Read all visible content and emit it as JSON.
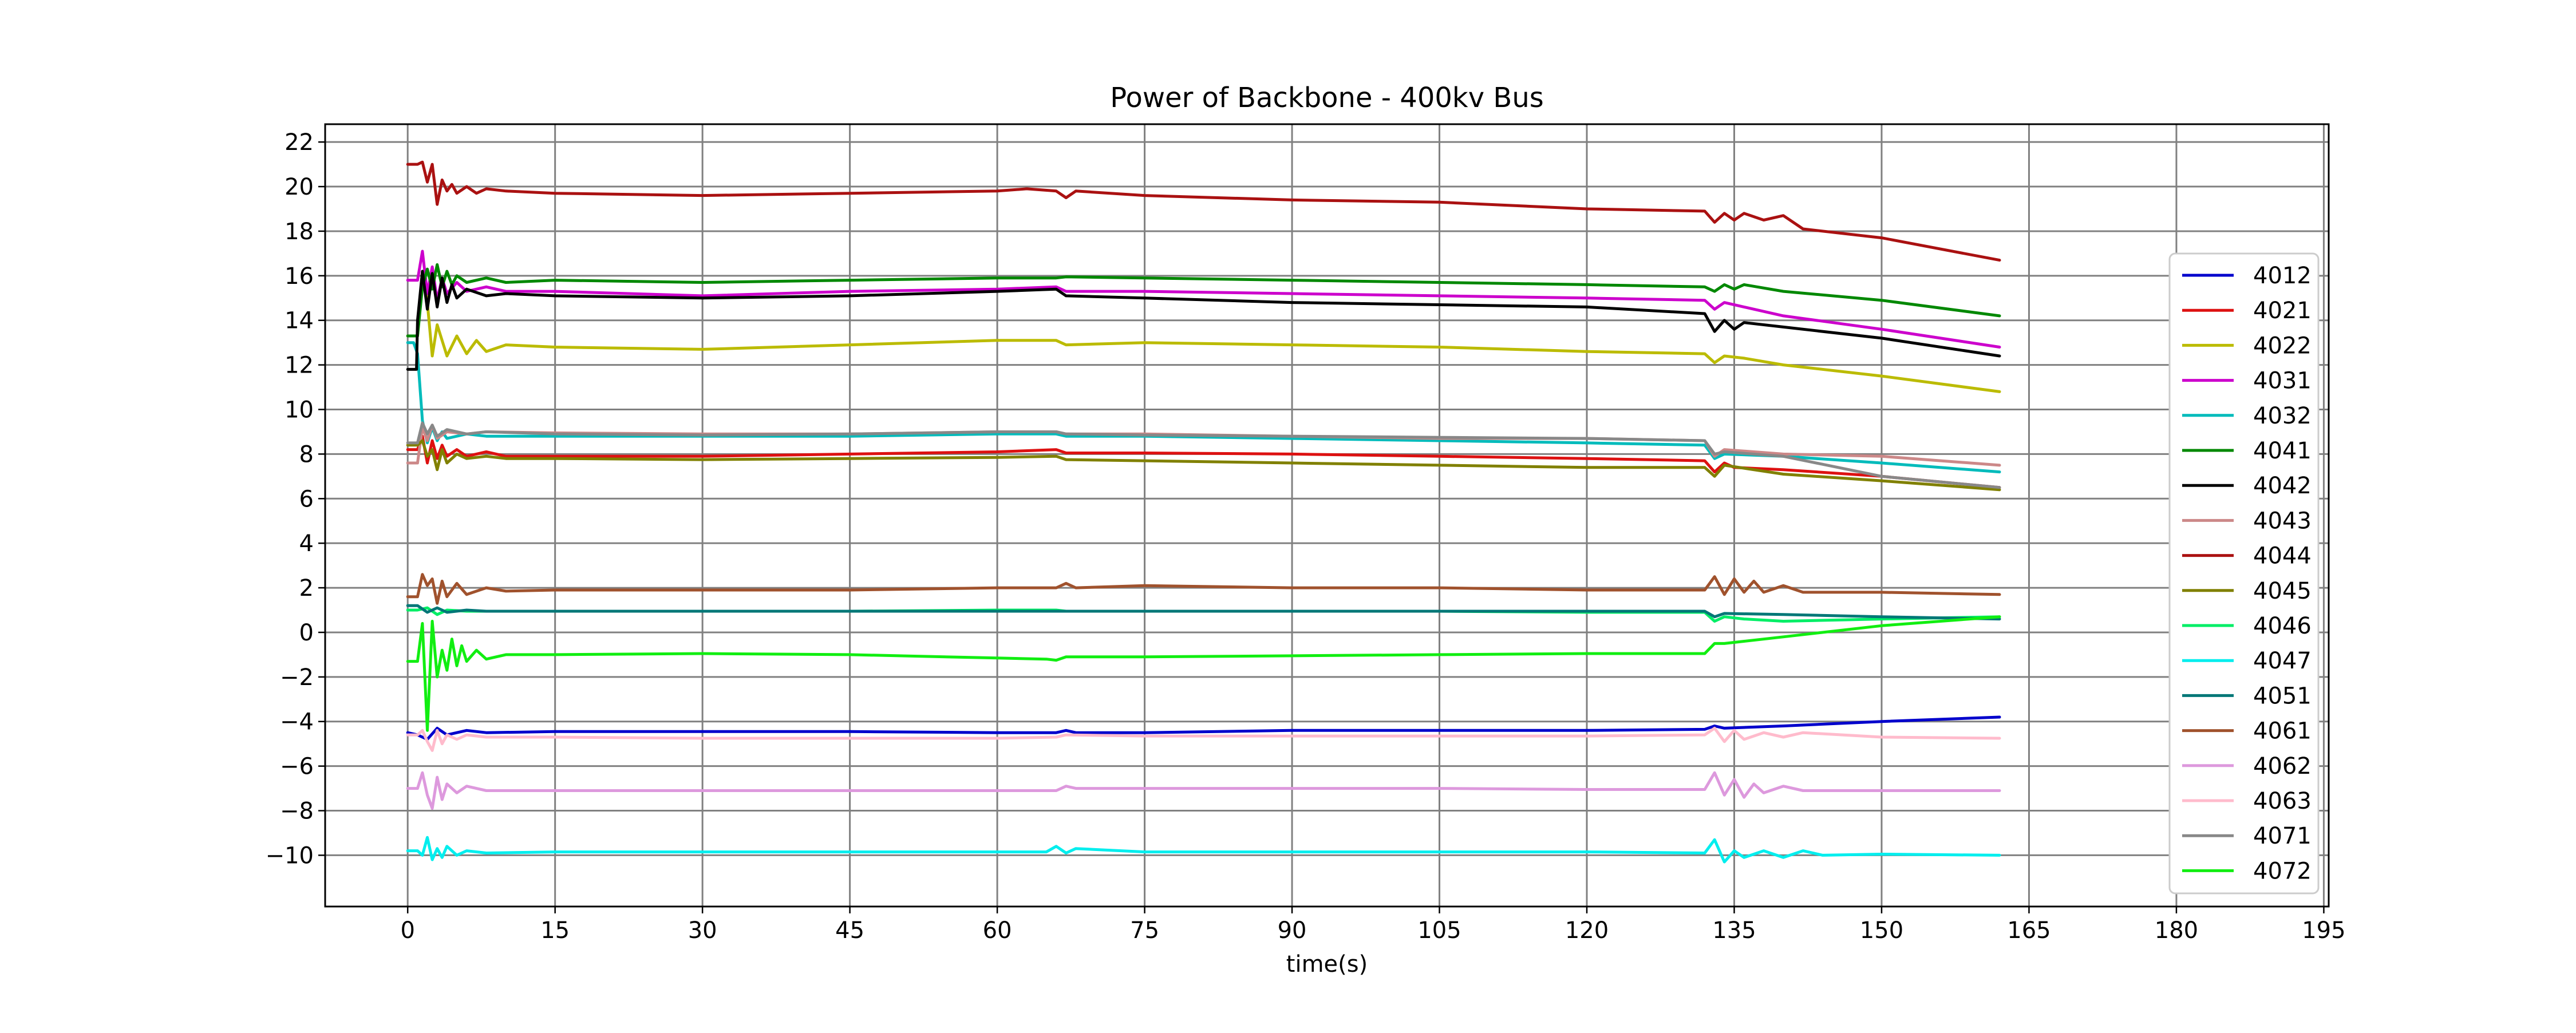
{
  "chart_data": {
    "type": "line",
    "title": "Power of Backbone - 400kv Bus",
    "xlabel": "time(s)",
    "ylabel": "",
    "xlim": [
      -8.4,
      195.5
    ],
    "ylim": [
      -12.3,
      22.8
    ],
    "xticks": [
      0,
      15,
      30,
      45,
      60,
      75,
      90,
      105,
      120,
      135,
      150,
      165,
      180,
      195
    ],
    "yticks": [
      -10,
      -8,
      -6,
      -4,
      -2,
      0,
      2,
      4,
      6,
      8,
      10,
      12,
      14,
      16,
      18,
      20,
      22
    ],
    "grid": true,
    "legend_position": "right",
    "series": [
      {
        "name": "4012",
        "color": "#0000cc",
        "x": [
          0,
          1,
          2,
          3,
          4,
          6,
          8,
          15,
          30,
          45,
          60,
          66,
          67,
          68,
          75,
          90,
          105,
          120,
          132,
          133,
          134,
          140,
          150,
          162
        ],
        "y": [
          -4.5,
          -4.6,
          -4.8,
          -4.3,
          -4.6,
          -4.4,
          -4.5,
          -4.45,
          -4.45,
          -4.45,
          -4.5,
          -4.5,
          -4.4,
          -4.5,
          -4.5,
          -4.4,
          -4.4,
          -4.4,
          -4.35,
          -4.2,
          -4.3,
          -4.2,
          -4.0,
          -3.8
        ]
      },
      {
        "name": "4021",
        "color": "#dd1111",
        "x": [
          0,
          1,
          1.5,
          2,
          2.5,
          3,
          3.5,
          4,
          5,
          6,
          8,
          10,
          15,
          30,
          45,
          60,
          66,
          67,
          75,
          90,
          105,
          120,
          132,
          133,
          134,
          135,
          140,
          150,
          162
        ],
        "y": [
          8.2,
          8.2,
          8.8,
          7.6,
          8.6,
          7.8,
          8.4,
          7.9,
          8.2,
          7.9,
          8.1,
          7.9,
          7.9,
          7.9,
          8.0,
          8.1,
          8.2,
          8.05,
          8.05,
          8.0,
          7.9,
          7.8,
          7.7,
          7.2,
          7.6,
          7.4,
          7.3,
          7.0,
          6.5
        ]
      },
      {
        "name": "4022",
        "color": "#bbbb00",
        "x": [
          0,
          1,
          1.5,
          2,
          2.5,
          3,
          4,
          5,
          6,
          7,
          8,
          10,
          15,
          30,
          45,
          60,
          66,
          67,
          75,
          90,
          105,
          120,
          132,
          133,
          134,
          136,
          140,
          150,
          162
        ],
        "y": [
          13.3,
          13.3,
          16.2,
          14.8,
          12.4,
          13.8,
          12.4,
          13.3,
          12.5,
          13.1,
          12.6,
          12.9,
          12.8,
          12.7,
          12.9,
          13.1,
          13.1,
          12.9,
          13.0,
          12.9,
          12.8,
          12.6,
          12.5,
          12.1,
          12.4,
          12.3,
          12.0,
          11.5,
          10.8
        ]
      },
      {
        "name": "4031",
        "color": "#cc00cc",
        "x": [
          0,
          1,
          1.5,
          2,
          2.5,
          3,
          3.5,
          4,
          5,
          6,
          8,
          10,
          15,
          30,
          45,
          60,
          66,
          67,
          75,
          90,
          105,
          120,
          132,
          133,
          134,
          136,
          140,
          150,
          162
        ],
        "y": [
          15.8,
          15.8,
          17.1,
          15.2,
          16.4,
          14.9,
          15.9,
          15.2,
          15.7,
          15.3,
          15.5,
          15.3,
          15.3,
          15.1,
          15.3,
          15.4,
          15.5,
          15.3,
          15.3,
          15.2,
          15.1,
          15.0,
          14.9,
          14.5,
          14.8,
          14.6,
          14.2,
          13.6,
          12.8
        ]
      },
      {
        "name": "4032",
        "color": "#00bbbb",
        "x": [
          0,
          0.6,
          1,
          1.5,
          2,
          2.5,
          3,
          3.5,
          4,
          6,
          8,
          15,
          30,
          45,
          60,
          66,
          67,
          75,
          90,
          105,
          120,
          132,
          133,
          134,
          140,
          150,
          162
        ],
        "y": [
          13.0,
          13.0,
          12.5,
          9.5,
          8.5,
          9.2,
          8.6,
          9.0,
          8.7,
          8.9,
          8.8,
          8.8,
          8.8,
          8.8,
          8.9,
          8.9,
          8.8,
          8.8,
          8.7,
          8.6,
          8.5,
          8.4,
          7.8,
          8.0,
          7.9,
          7.6,
          7.2
        ]
      },
      {
        "name": "4041",
        "color": "#008800",
        "x": [
          0,
          1,
          1.5,
          2,
          2.5,
          3,
          3.5,
          4,
          4.5,
          5,
          6,
          8,
          10,
          15,
          30,
          45,
          60,
          66,
          67,
          75,
          90,
          105,
          120,
          132,
          133,
          134,
          135,
          136,
          140,
          150,
          162
        ],
        "y": [
          13.3,
          13.3,
          15.5,
          16.3,
          15.4,
          16.5,
          15.5,
          16.2,
          15.6,
          16.0,
          15.7,
          15.9,
          15.7,
          15.8,
          15.7,
          15.8,
          15.9,
          15.9,
          15.95,
          15.9,
          15.8,
          15.7,
          15.6,
          15.5,
          15.3,
          15.6,
          15.4,
          15.6,
          15.3,
          14.9,
          14.2
        ]
      },
      {
        "name": "4042",
        "color": "#000000",
        "x": [
          0,
          0.9,
          1,
          1.5,
          2,
          2.5,
          3,
          3.5,
          4,
          4.5,
          5,
          6,
          8,
          10,
          15,
          30,
          45,
          60,
          66,
          67,
          75,
          90,
          105,
          120,
          132,
          133,
          134,
          135,
          136,
          140,
          150,
          162
        ],
        "y": [
          11.8,
          11.8,
          14.0,
          16.2,
          14.5,
          16.1,
          14.6,
          15.9,
          14.8,
          15.6,
          15.0,
          15.4,
          15.1,
          15.2,
          15.1,
          15.0,
          15.1,
          15.3,
          15.4,
          15.1,
          15.0,
          14.8,
          14.7,
          14.6,
          14.3,
          13.5,
          14.0,
          13.6,
          13.9,
          13.7,
          13.2,
          12.4
        ]
      },
      {
        "name": "4043",
        "color": "#cc8888",
        "x": [
          0,
          1,
          1.5,
          2,
          2.5,
          3,
          4,
          6,
          8,
          15,
          30,
          45,
          60,
          66,
          67,
          75,
          90,
          105,
          120,
          132,
          133,
          134,
          140,
          150,
          162
        ],
        "y": [
          7.6,
          7.6,
          9.2,
          8.6,
          9.3,
          8.7,
          9.0,
          8.9,
          9.0,
          8.95,
          8.9,
          8.9,
          9.0,
          9.0,
          8.9,
          8.9,
          8.8,
          8.7,
          8.7,
          8.6,
          7.9,
          8.2,
          8.0,
          7.9,
          7.5
        ]
      },
      {
        "name": "4044",
        "color": "#aa1111",
        "x": [
          0,
          1,
          1.5,
          2,
          2.5,
          3,
          3.5,
          4,
          4.5,
          5,
          6,
          7,
          8,
          10,
          15,
          30,
          45,
          60,
          63,
          66,
          67,
          68,
          75,
          90,
          105,
          120,
          132,
          133,
          134,
          135,
          136,
          138,
          140,
          142,
          150,
          162
        ],
        "y": [
          21.0,
          21.0,
          21.1,
          20.2,
          21.0,
          19.2,
          20.3,
          19.8,
          20.1,
          19.7,
          20.0,
          19.7,
          19.9,
          19.8,
          19.7,
          19.6,
          19.7,
          19.8,
          19.9,
          19.8,
          19.5,
          19.8,
          19.6,
          19.4,
          19.3,
          19.0,
          18.9,
          18.4,
          18.8,
          18.5,
          18.8,
          18.5,
          18.7,
          18.1,
          17.7,
          16.7
        ]
      },
      {
        "name": "4045",
        "color": "#808000",
        "x": [
          0,
          1,
          1.5,
          2,
          2.5,
          3,
          3.5,
          4,
          5,
          6,
          8,
          10,
          15,
          30,
          45,
          60,
          66,
          67,
          75,
          90,
          105,
          120,
          132,
          133,
          134,
          140,
          150,
          162
        ],
        "y": [
          8.4,
          8.4,
          8.6,
          7.9,
          8.2,
          7.3,
          8.2,
          7.6,
          8.0,
          7.8,
          7.9,
          7.8,
          7.8,
          7.75,
          7.8,
          7.85,
          7.9,
          7.75,
          7.7,
          7.6,
          7.5,
          7.4,
          7.4,
          7.0,
          7.5,
          7.1,
          6.8,
          6.4
        ]
      },
      {
        "name": "4046",
        "color": "#00ee66",
        "x": [
          0,
          1,
          2,
          3,
          4,
          6,
          8,
          15,
          30,
          45,
          60,
          66,
          67,
          75,
          90,
          105,
          120,
          132,
          133,
          134,
          136,
          140,
          150,
          162
        ],
        "y": [
          1.0,
          1.0,
          1.1,
          0.8,
          1.0,
          0.95,
          0.95,
          0.95,
          0.95,
          0.95,
          1.0,
          1.0,
          0.95,
          0.95,
          0.95,
          0.95,
          0.9,
          0.9,
          0.5,
          0.7,
          0.6,
          0.5,
          0.6,
          0.7
        ]
      },
      {
        "name": "4047",
        "color": "#00eeee",
        "x": [
          0,
          1,
          1.5,
          2,
          2.5,
          3,
          3.5,
          4,
          5,
          6,
          8,
          15,
          30,
          45,
          60,
          65,
          66,
          67,
          68,
          75,
          90,
          105,
          120,
          132,
          133,
          134,
          135,
          136,
          138,
          140,
          142,
          144,
          150,
          162
        ],
        "y": [
          -9.8,
          -9.8,
          -10.0,
          -9.2,
          -10.2,
          -9.7,
          -10.1,
          -9.6,
          -10.0,
          -9.8,
          -9.9,
          -9.85,
          -9.85,
          -9.85,
          -9.85,
          -9.85,
          -9.6,
          -9.9,
          -9.7,
          -9.85,
          -9.85,
          -9.85,
          -9.85,
          -9.9,
          -9.3,
          -10.3,
          -9.8,
          -10.1,
          -9.8,
          -10.1,
          -9.8,
          -10.0,
          -9.95,
          -10.0
        ]
      },
      {
        "name": "4051",
        "color": "#007777",
        "x": [
          0,
          1,
          2,
          3,
          4,
          6,
          8,
          15,
          30,
          45,
          60,
          66,
          67,
          75,
          90,
          105,
          120,
          132,
          133,
          134,
          140,
          150,
          162
        ],
        "y": [
          1.2,
          1.2,
          0.9,
          1.1,
          0.9,
          1.0,
          0.95,
          0.95,
          0.95,
          0.95,
          0.95,
          0.95,
          0.95,
          0.95,
          0.95,
          0.95,
          0.95,
          0.95,
          0.7,
          0.85,
          0.8,
          0.7,
          0.6
        ]
      },
      {
        "name": "4061",
        "color": "#a0522d",
        "x": [
          0,
          1,
          1.5,
          2,
          2.5,
          3,
          3.5,
          4,
          5,
          6,
          8,
          10,
          15,
          30,
          45,
          60,
          66,
          67,
          68,
          75,
          90,
          105,
          120,
          132,
          133,
          134,
          135,
          136,
          137,
          138,
          140,
          142,
          150,
          162
        ],
        "y": [
          1.6,
          1.6,
          2.6,
          2.1,
          2.4,
          1.3,
          2.3,
          1.6,
          2.2,
          1.7,
          2.0,
          1.85,
          1.9,
          1.9,
          1.9,
          2.0,
          2.0,
          2.2,
          2.0,
          2.1,
          2.0,
          2.0,
          1.9,
          1.9,
          2.5,
          1.7,
          2.4,
          1.8,
          2.3,
          1.8,
          2.1,
          1.8,
          1.8,
          1.7
        ]
      },
      {
        "name": "4062",
        "color": "#dd99dd",
        "x": [
          0,
          1,
          1.5,
          2,
          2.5,
          3,
          3.5,
          4,
          5,
          6,
          8,
          15,
          30,
          45,
          60,
          66,
          67,
          68,
          75,
          90,
          105,
          120,
          132,
          133,
          134,
          135,
          136,
          137,
          138,
          140,
          142,
          150,
          162
        ],
        "y": [
          -7.0,
          -7.0,
          -6.3,
          -7.3,
          -7.9,
          -6.5,
          -7.5,
          -6.8,
          -7.2,
          -6.9,
          -7.1,
          -7.1,
          -7.1,
          -7.1,
          -7.1,
          -7.1,
          -6.9,
          -7.0,
          -7.0,
          -7.0,
          -7.0,
          -7.05,
          -7.05,
          -6.3,
          -7.3,
          -6.6,
          -7.4,
          -6.8,
          -7.2,
          -6.9,
          -7.1,
          -7.1,
          -7.1
        ]
      },
      {
        "name": "4063",
        "color": "#ffbbcc",
        "x": [
          0,
          1,
          1.5,
          2,
          2.5,
          3,
          3.5,
          4,
          5,
          6,
          8,
          15,
          30,
          45,
          60,
          66,
          67,
          75,
          90,
          105,
          120,
          132,
          133,
          134,
          135,
          136,
          138,
          140,
          142,
          150,
          162
        ],
        "y": [
          -4.6,
          -4.6,
          -4.4,
          -4.9,
          -5.3,
          -4.4,
          -5.0,
          -4.6,
          -4.8,
          -4.6,
          -4.7,
          -4.7,
          -4.75,
          -4.75,
          -4.75,
          -4.7,
          -4.6,
          -4.65,
          -4.65,
          -4.65,
          -4.65,
          -4.6,
          -4.3,
          -4.9,
          -4.4,
          -4.8,
          -4.5,
          -4.7,
          -4.5,
          -4.7,
          -4.75
        ]
      },
      {
        "name": "4071",
        "color": "#888888",
        "x": [
          0,
          1,
          1.5,
          2,
          2.5,
          3,
          4,
          6,
          8,
          15,
          30,
          45,
          60,
          66,
          67,
          75,
          90,
          105,
          120,
          132,
          133,
          134,
          140,
          150,
          162
        ],
        "y": [
          8.5,
          8.5,
          9.4,
          8.9,
          9.3,
          8.8,
          9.1,
          8.9,
          9.0,
          8.9,
          8.85,
          8.9,
          9.0,
          9.0,
          8.9,
          8.85,
          8.8,
          8.75,
          8.7,
          8.6,
          8.0,
          8.1,
          7.9,
          7.0,
          6.5
        ]
      },
      {
        "name": "4072",
        "color": "#11ee11",
        "x": [
          0,
          1,
          1.5,
          2,
          2.5,
          3,
          3.5,
          4,
          4.5,
          5,
          5.5,
          6,
          7,
          8,
          10,
          15,
          30,
          45,
          60,
          65,
          66,
          67,
          75,
          90,
          105,
          120,
          132,
          133,
          134,
          136,
          140,
          150,
          162
        ],
        "y": [
          -1.3,
          -1.3,
          0.4,
          -4.4,
          0.5,
          -2.0,
          -0.8,
          -1.7,
          -0.3,
          -1.5,
          -0.6,
          -1.3,
          -0.8,
          -1.2,
          -1.0,
          -1.0,
          -0.95,
          -1.0,
          -1.15,
          -1.2,
          -1.25,
          -1.1,
          -1.1,
          -1.05,
          -1.0,
          -0.95,
          -0.95,
          -0.5,
          -0.5,
          -0.4,
          -0.2,
          0.3,
          0.7
        ]
      }
    ]
  }
}
